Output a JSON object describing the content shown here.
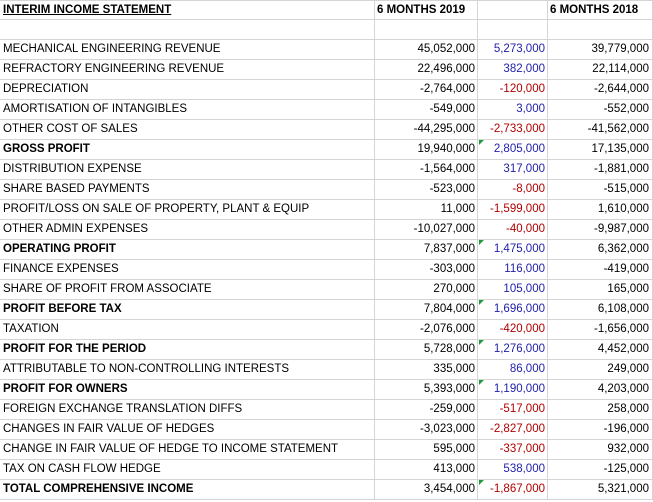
{
  "header": {
    "title": "INTERIM INCOME STATEMENT",
    "col_2019": "6 MONTHS 2019",
    "col_2018": "6 MONTHS 2018"
  },
  "rows": [
    {
      "label": "MECHANICAL ENGINEERING REVENUE",
      "v2019": "45,052,000",
      "diff": "5,273,000",
      "v2018": "39,779,000",
      "bold": false,
      "sign": "pos",
      "flag": false
    },
    {
      "label": "REFRACTORY ENGINEERING REVENUE",
      "v2019": "22,496,000",
      "diff": "382,000",
      "v2018": "22,114,000",
      "bold": false,
      "sign": "pos",
      "flag": false
    },
    {
      "label": "DEPRECIATION",
      "v2019": "-2,764,000",
      "diff": "-120,000",
      "v2018": "-2,644,000",
      "bold": false,
      "sign": "neg",
      "flag": false
    },
    {
      "label": "AMORTISATION OF INTANGIBLES",
      "v2019": "-549,000",
      "diff": "3,000",
      "v2018": "-552,000",
      "bold": false,
      "sign": "pos",
      "flag": false
    },
    {
      "label": "OTHER COST OF SALES",
      "v2019": "-44,295,000",
      "diff": "-2,733,000",
      "v2018": "-41,562,000",
      "bold": false,
      "sign": "neg",
      "flag": false
    },
    {
      "label": "GROSS PROFIT",
      "v2019": "19,940,000",
      "diff": "2,805,000",
      "v2018": "17,135,000",
      "bold": true,
      "sign": "pos",
      "flag": true
    },
    {
      "label": "DISTRIBUTION EXPENSE",
      "v2019": "-1,564,000",
      "diff": "317,000",
      "v2018": "-1,881,000",
      "bold": false,
      "sign": "pos",
      "flag": false
    },
    {
      "label": "SHARE BASED PAYMENTS",
      "v2019": "-523,000",
      "diff": "-8,000",
      "v2018": "-515,000",
      "bold": false,
      "sign": "neg",
      "flag": false
    },
    {
      "label": "PROFIT/LOSS ON SALE OF PROPERTY, PLANT & EQUIP",
      "v2019": "11,000",
      "diff": "-1,599,000",
      "v2018": "1,610,000",
      "bold": false,
      "sign": "neg",
      "flag": false
    },
    {
      "label": "OTHER ADMIN EXPENSES",
      "v2019": "-10,027,000",
      "diff": "-40,000",
      "v2018": "-9,987,000",
      "bold": false,
      "sign": "neg",
      "flag": false
    },
    {
      "label": "OPERATING PROFIT",
      "v2019": "7,837,000",
      "diff": "1,475,000",
      "v2018": "6,362,000",
      "bold": true,
      "sign": "pos",
      "flag": true
    },
    {
      "label": "FINANCE EXPENSES",
      "v2019": "-303,000",
      "diff": "116,000",
      "v2018": "-419,000",
      "bold": false,
      "sign": "pos",
      "flag": false
    },
    {
      "label": "SHARE OF PROFIT FROM ASSOCIATE",
      "v2019": "270,000",
      "diff": "105,000",
      "v2018": "165,000",
      "bold": false,
      "sign": "pos",
      "flag": false
    },
    {
      "label": "PROFIT BEFORE TAX",
      "v2019": "7,804,000",
      "diff": "1,696,000",
      "v2018": "6,108,000",
      "bold": true,
      "sign": "pos",
      "flag": true
    },
    {
      "label": "TAXATION",
      "v2019": "-2,076,000",
      "diff": "-420,000",
      "v2018": "-1,656,000",
      "bold": false,
      "sign": "neg",
      "flag": false
    },
    {
      "label": "PROFIT FOR THE PERIOD",
      "v2019": "5,728,000",
      "diff": "1,276,000",
      "v2018": "4,452,000",
      "bold": true,
      "sign": "pos",
      "flag": true
    },
    {
      "label": "ATTRIBUTABLE TO NON-CONTROLLING INTERESTS",
      "v2019": "335,000",
      "diff": "86,000",
      "v2018": "249,000",
      "bold": false,
      "sign": "pos",
      "flag": false
    },
    {
      "label": "PROFIT FOR OWNERS",
      "v2019": "5,393,000",
      "diff": "1,190,000",
      "v2018": "4,203,000",
      "bold": true,
      "sign": "pos",
      "flag": true
    },
    {
      "label": "FOREIGN EXCHANGE TRANSLATION DIFFS",
      "v2019": "-259,000",
      "diff": "-517,000",
      "v2018": "258,000",
      "bold": false,
      "sign": "neg",
      "flag": false
    },
    {
      "label": "CHANGES IN FAIR VALUE OF HEDGES",
      "v2019": "-3,023,000",
      "diff": "-2,827,000",
      "v2018": "-196,000",
      "bold": false,
      "sign": "neg",
      "flag": false
    },
    {
      "label": "CHANGE IN FAIR VALUE OF HEDGE TO INCOME STATEMENT",
      "v2019": "595,000",
      "diff": "-337,000",
      "v2018": "932,000",
      "bold": false,
      "sign": "neg",
      "flag": false
    },
    {
      "label": "TAX ON CASH FLOW HEDGE",
      "v2019": "413,000",
      "diff": "538,000",
      "v2018": "-125,000",
      "bold": false,
      "sign": "pos",
      "flag": false
    },
    {
      "label": "TOTAL COMPREHENSIVE INCOME",
      "v2019": "3,454,000",
      "diff": "-1,867,000",
      "v2018": "5,321,000",
      "bold": true,
      "sign": "neg",
      "flag": true
    }
  ],
  "colors": {
    "positive": "#1f1fa8",
    "negative": "#b00000",
    "grid": "#d4d4d4",
    "flag": "#1e9a3c"
  }
}
